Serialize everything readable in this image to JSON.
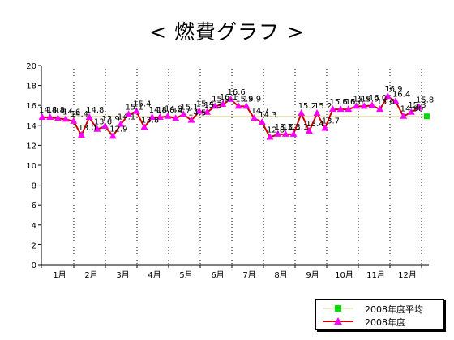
{
  "chart_data": {
    "type": "line",
    "title": "< 燃費グラフ >",
    "xlabel": "",
    "ylabel": "",
    "ylim": [
      0,
      20
    ],
    "yticks": [
      0,
      2,
      4,
      6,
      8,
      10,
      12,
      14,
      16,
      18,
      20
    ],
    "months": [
      "1月",
      "2月",
      "3月",
      "4月",
      "5月",
      "6月",
      "7月",
      "8月",
      "9月",
      "10月",
      "11月",
      "12月"
    ],
    "grid": "vertical dotted month separators",
    "legend_position": "bottom-right",
    "series": [
      {
        "name": "2008年度平均",
        "color": "#00cc00",
        "line_color": "#e8e4b8",
        "marker": "square",
        "values": [
          14.9
        ]
      },
      {
        "name": "2008年度",
        "color": "#cc0000",
        "marker_color": "#ff00ff",
        "marker": "triangle",
        "values": [
          14.8,
          14.8,
          14.7,
          14.6,
          14.4,
          13.0,
          14.8,
          13.6,
          13.9,
          12.9,
          14.1,
          15.1,
          15.4,
          13.8,
          14.8,
          14.8,
          14.9,
          14.7,
          15.1,
          14.5,
          15.4,
          15.3,
          15.9,
          16.1,
          16.6,
          15.9,
          15.9,
          14.7,
          14.3,
          12.8,
          13.1,
          13.1,
          13.1,
          15.2,
          13.4,
          15.2,
          13.7,
          15.6,
          15.6,
          15.6,
          15.9,
          15.9,
          16.0,
          15.6,
          16.9,
          16.4,
          14.9,
          15.3,
          15.8
        ],
        "labels": [
          "14.8",
          "14.8",
          "14.7",
          "14.6",
          "14.4",
          "13.0",
          "14.8",
          "13.6",
          "13.9",
          "12.9",
          "14.1",
          "15.1",
          "15.4",
          "13.8",
          "14.8",
          "14.8",
          "14.9",
          "14.7",
          "15.1",
          "14.5",
          "15.4",
          "15.3",
          "15.9",
          "16.1",
          "16.6",
          "15.9",
          "15.9",
          "14.7",
          "14.3",
          "12.8",
          "13.1",
          "13.1",
          "13.1",
          "15.2",
          "13.4",
          "15.2",
          "13.7",
          "15.6",
          "15.6",
          "15.6",
          "15.9",
          "15.9",
          "16.0",
          "15.6",
          "16.9",
          "16.4",
          "14.90",
          "15.3",
          "15.8"
        ]
      }
    ]
  }
}
